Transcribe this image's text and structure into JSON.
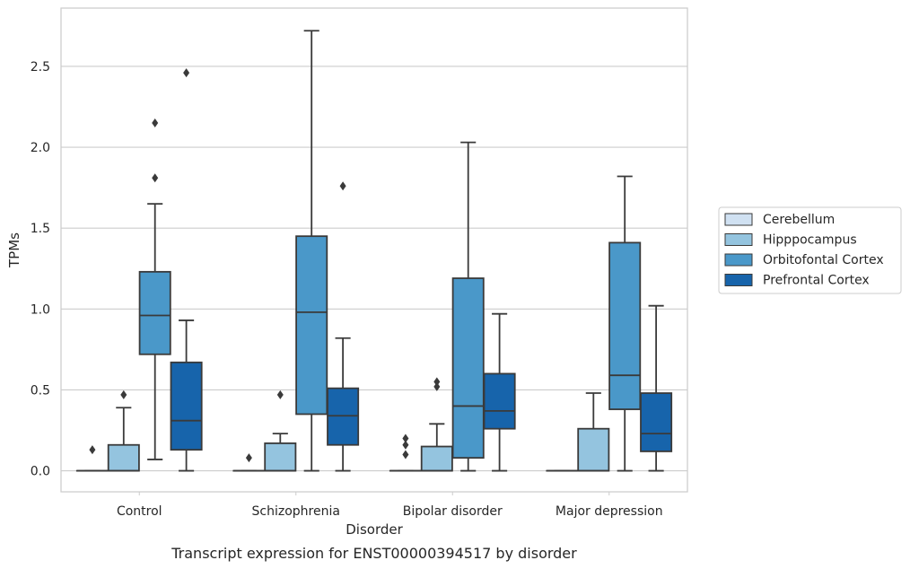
{
  "chart_data": {
    "type": "box",
    "caption": "Transcript expression for ENST00000394517 by disorder",
    "xlabel": "Disorder",
    "ylabel": "TPMs",
    "ylim": [
      -0.13,
      2.86
    ],
    "yticks": [
      0.0,
      0.5,
      1.0,
      1.5,
      2.0,
      2.5
    ],
    "ytick_labels": [
      "0.0",
      "0.5",
      "1.0",
      "1.5",
      "2.0",
      "2.5"
    ],
    "grid": true,
    "legend_position": "right",
    "categories": [
      "Control",
      "Schizophrenia",
      "Bipolar disorder",
      "Major depression"
    ],
    "series": [
      {
        "name": "Cerebellum",
        "color": "#d0e1f2",
        "boxes": [
          {
            "q1": 0,
            "median": 0,
            "q3": 0,
            "whislo": 0,
            "whishi": 0,
            "fliers": [
              0.13
            ]
          },
          {
            "q1": 0,
            "median": 0,
            "q3": 0,
            "whislo": 0,
            "whishi": 0,
            "fliers": [
              0.08
            ]
          },
          {
            "q1": 0,
            "median": 0,
            "q3": 0,
            "whislo": 0,
            "whishi": 0,
            "fliers": [
              0.1,
              0.16,
              0.2
            ]
          },
          {
            "q1": 0,
            "median": 0,
            "q3": 0,
            "whislo": 0,
            "whishi": 0,
            "fliers": []
          }
        ]
      },
      {
        "name": "Hipppocampus",
        "color": "#94c4df",
        "boxes": [
          {
            "q1": 0,
            "median": 0,
            "q3": 0.16,
            "whislo": 0,
            "whishi": 0.39,
            "fliers": [
              0.47
            ]
          },
          {
            "q1": 0,
            "median": 0,
            "q3": 0.17,
            "whislo": 0,
            "whishi": 0.23,
            "fliers": [
              0.47
            ]
          },
          {
            "q1": 0,
            "median": 0,
            "q3": 0.15,
            "whislo": 0,
            "whishi": 0.29,
            "fliers": [
              0.52,
              0.55
            ]
          },
          {
            "q1": 0,
            "median": 0,
            "q3": 0.26,
            "whislo": 0,
            "whishi": 0.48,
            "fliers": []
          }
        ]
      },
      {
        "name": "Orbitofontal Cortex",
        "color": "#4a98c9",
        "boxes": [
          {
            "q1": 0.72,
            "median": 0.96,
            "q3": 1.23,
            "whislo": 0.07,
            "whishi": 1.65,
            "fliers": [
              1.81,
              2.15
            ]
          },
          {
            "q1": 0.35,
            "median": 0.98,
            "q3": 1.45,
            "whislo": 0,
            "whishi": 2.72,
            "fliers": []
          },
          {
            "q1": 0.08,
            "median": 0.4,
            "q3": 1.19,
            "whislo": 0,
            "whishi": 2.03,
            "fliers": []
          },
          {
            "q1": 0.38,
            "median": 0.59,
            "q3": 1.41,
            "whislo": 0,
            "whishi": 1.82,
            "fliers": []
          }
        ]
      },
      {
        "name": "Prefrontal Cortex",
        "color": "#1764ab",
        "boxes": [
          {
            "q1": 0.13,
            "median": 0.31,
            "q3": 0.67,
            "whislo": 0,
            "whishi": 0.93,
            "fliers": [
              2.46
            ]
          },
          {
            "q1": 0.16,
            "median": 0.34,
            "q3": 0.51,
            "whislo": 0,
            "whishi": 0.82,
            "fliers": [
              1.76
            ]
          },
          {
            "q1": 0.26,
            "median": 0.37,
            "q3": 0.6,
            "whislo": 0,
            "whishi": 0.97,
            "fliers": []
          },
          {
            "q1": 0.12,
            "median": 0.23,
            "q3": 0.48,
            "whislo": 0,
            "whishi": 1.02,
            "fliers": []
          }
        ]
      }
    ]
  }
}
